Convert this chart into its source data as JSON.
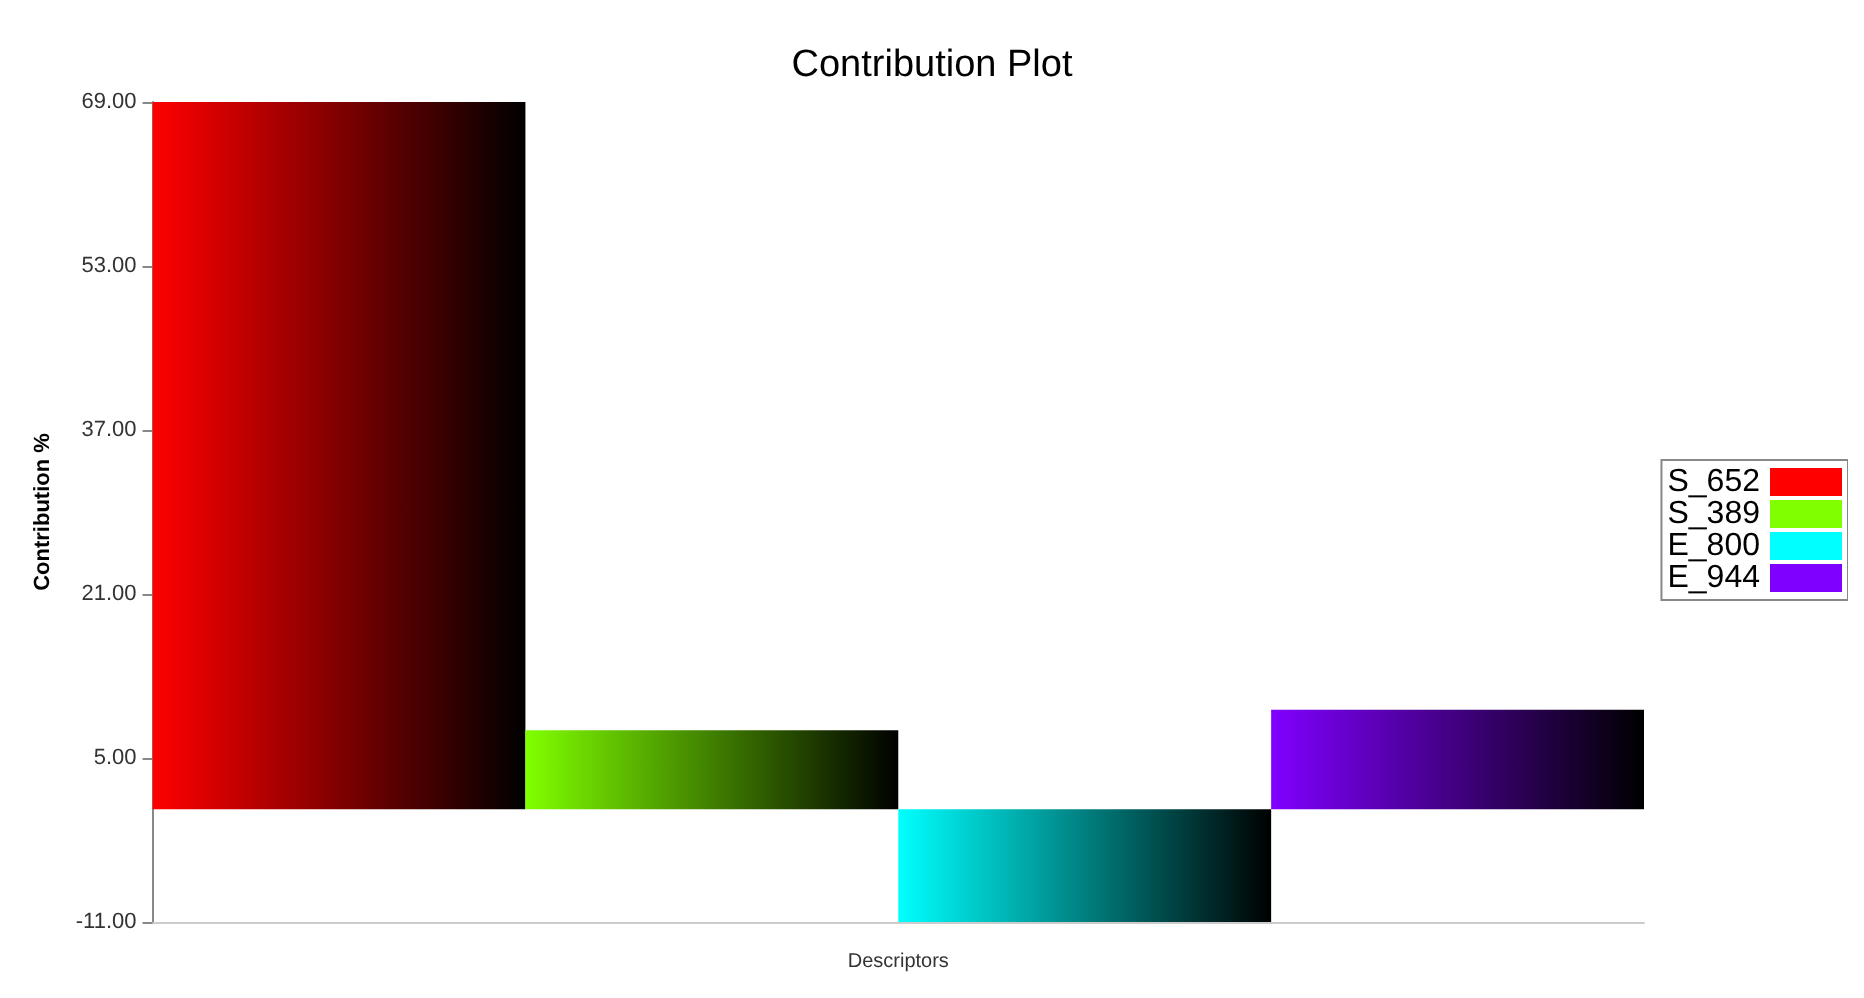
{
  "chart_data": {
    "type": "bar",
    "title": "Contribution Plot",
    "xlabel": "Descriptors",
    "ylabel": "Contribution %",
    "categories": [
      null
    ],
    "series": [
      {
        "name": "S_652",
        "color": "#ff0000",
        "values": [
          69
        ]
      },
      {
        "name": "S_389",
        "color": "#80ff00",
        "values": [
          7.7
        ]
      },
      {
        "name": "E_800",
        "color": "#00ffff",
        "values": [
          -11
        ]
      },
      {
        "name": "E_944",
        "color": "#8000ff",
        "values": [
          9.7
        ]
      }
    ],
    "ylim": [
      -11,
      69
    ],
    "yticks": [
      {
        "value": -11,
        "label": "-11.00"
      },
      {
        "value": 5,
        "label": "5.00"
      },
      {
        "value": 21,
        "label": "21.00"
      },
      {
        "value": 37,
        "label": "37.00"
      },
      {
        "value": 53,
        "label": "53.00"
      },
      {
        "value": 69,
        "label": "69.00"
      }
    ],
    "legend": "right",
    "grid": false,
    "tick_labels": "y"
  }
}
